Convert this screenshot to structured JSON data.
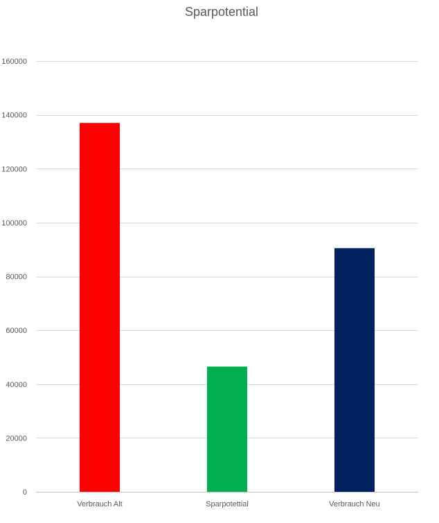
{
  "chart_data": {
    "type": "bar",
    "title": "Sparpotential",
    "xlabel": "",
    "ylabel": "",
    "categories": [
      "Verbrauch Alt",
      "Sparpotettial",
      "Verbrauch Neu"
    ],
    "values": [
      137000,
      46500,
      90500
    ],
    "colors": [
      "#ff0000",
      "#00b050",
      "#002060"
    ],
    "ylim": [
      0,
      160000
    ],
    "yticks": [
      0,
      20000,
      40000,
      60000,
      80000,
      100000,
      120000,
      140000,
      160000
    ],
    "ytick_labels": [
      "0",
      "20000",
      "40000",
      "60000",
      "80000",
      "100000",
      "120000",
      "140000",
      "160000"
    ],
    "grid": true,
    "legend": "none"
  }
}
